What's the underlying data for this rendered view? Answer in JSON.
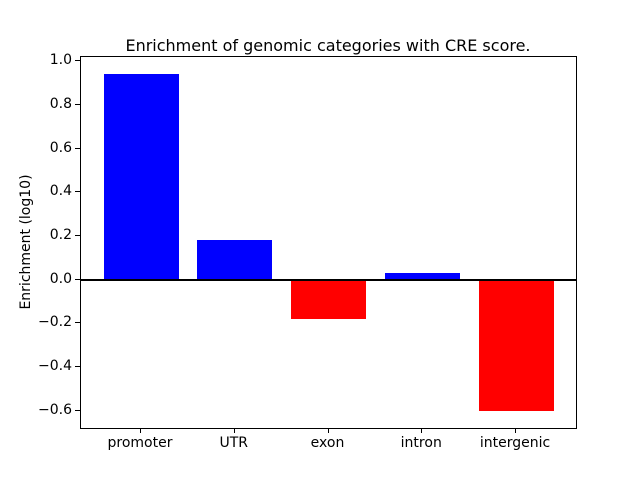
{
  "figure": {
    "title": "Enrichment of genomic categories with CRE score.",
    "ylabel": "Enrichment (log10)",
    "background": "#ffffff"
  },
  "chart_data": {
    "type": "bar",
    "title": "Enrichment of genomic categories with CRE score.",
    "xlabel": "",
    "ylabel": "Enrichment (log10)",
    "categories": [
      "promoter",
      "UTR",
      "exon",
      "intron",
      "intergenic"
    ],
    "values": [
      0.94,
      0.18,
      -0.18,
      0.03,
      -0.6
    ],
    "bar_colors": [
      "#0000ff",
      "#0000ff",
      "#ff0000",
      "#0000ff",
      "#ff0000"
    ],
    "colors": {
      "positive": "#0000ff",
      "negative": "#ff0000"
    },
    "ylim": [
      -0.68,
      1.02
    ],
    "xlim": [
      -0.64,
      4.64
    ],
    "bar_width": 0.8,
    "yticks": [
      1.0,
      0.8,
      0.6,
      0.4,
      0.2,
      0.0,
      -0.2,
      -0.4,
      -0.6
    ],
    "ytick_labels": [
      "1.0",
      "0.8",
      "0.6",
      "0.4",
      "0.2",
      "0.0",
      "−0.2",
      "−0.4",
      "−0.6"
    ],
    "grid": false,
    "legend": "none",
    "zero_line": true,
    "frame_color": "#000000"
  }
}
